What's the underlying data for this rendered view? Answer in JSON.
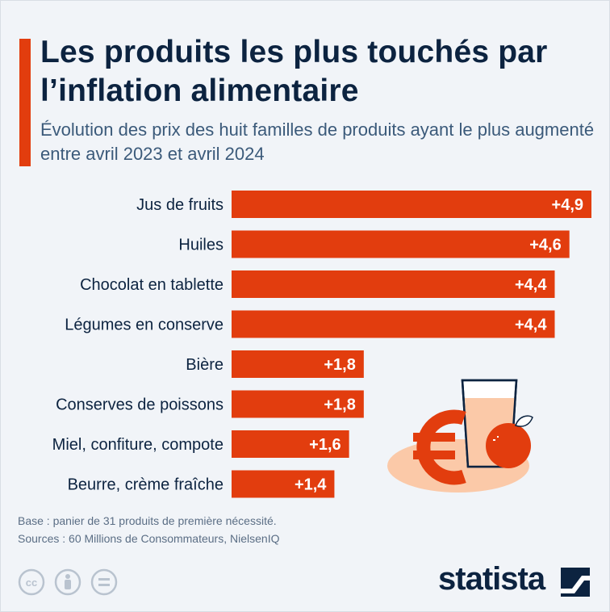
{
  "title": "Les produits les plus touchés par l’inflation alimentaire",
  "subtitle": "Évolution des prix des huit familles de produits ayant le plus augmenté entre avril 2023 et avril 2024",
  "chart_data": {
    "type": "bar",
    "orientation": "horizontal",
    "categories": [
      "Jus de fruits",
      "Huiles",
      "Chocolat en tablette",
      "Légumes en conserve",
      "Bière",
      "Conserves de poissons",
      "Miel, confiture, compote",
      "Beurre, crème fraîche"
    ],
    "values": [
      4.9,
      4.6,
      4.4,
      4.4,
      1.8,
      1.8,
      1.6,
      1.4
    ],
    "value_labels": [
      "+4,9",
      "+4,6",
      "+4,4",
      "+4,4",
      "+1,8",
      "+1,8",
      "+1,6",
      "+1,4"
    ],
    "xlim": [
      0,
      4.9
    ],
    "bar_color": "#e23d0e",
    "grid": false,
    "title": "",
    "xlabel": "",
    "ylabel": ""
  },
  "notes": {
    "base": "Base : panier de 31 produits de première nécessité.",
    "sources": "Sources : 60 Millions de Consommateurs, NielsenIQ"
  },
  "license_icons": [
    "cc-icon",
    "person-icon",
    "equals-icon"
  ],
  "brand": {
    "name": "statista"
  },
  "colors": {
    "accent": "#e23d0e",
    "text": "#0c2340",
    "background": "#f1f4f8",
    "illustration": "#fbc9a8"
  }
}
